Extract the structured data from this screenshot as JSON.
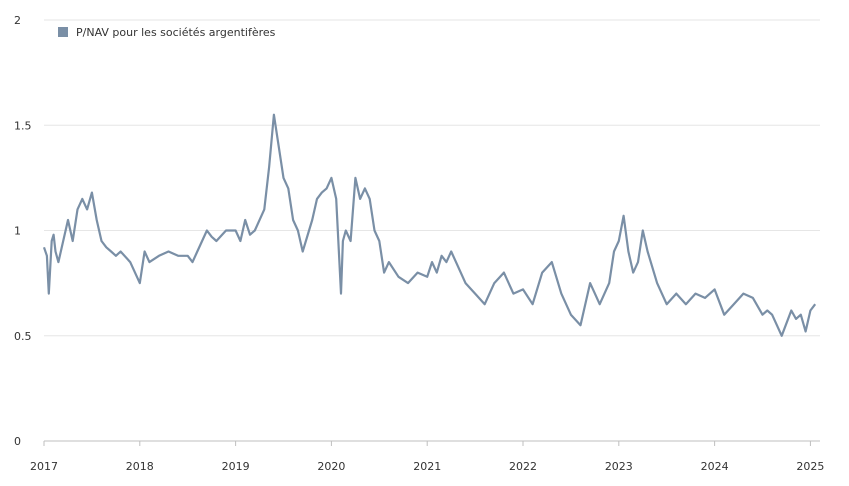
{
  "chart_data": {
    "type": "line",
    "title": "",
    "xlabel": "",
    "ylabel": "",
    "ylim": [
      0,
      2
    ],
    "xlim": [
      2017.0,
      2025.1
    ],
    "y_ticks": [
      "0",
      "0.5",
      "1",
      "1.5",
      "2"
    ],
    "y_tick_values": [
      0,
      0.5,
      1,
      1.5,
      2
    ],
    "x_ticks": [
      "2017",
      "2018",
      "2019",
      "2020",
      "2021",
      "2022",
      "2023",
      "2024",
      "2025"
    ],
    "x_tick_values": [
      2017,
      2018,
      2019,
      2020,
      2021,
      2022,
      2023,
      2024,
      2025
    ],
    "grid": true,
    "legend_position": "top-left",
    "series_color": "#7a8fa6",
    "series": [
      {
        "name": "P/NAV pour les sociétés argentifères",
        "x": [
          2017.0,
          2017.03,
          2017.05,
          2017.08,
          2017.1,
          2017.12,
          2017.15,
          2017.2,
          2017.25,
          2017.3,
          2017.35,
          2017.4,
          2017.45,
          2017.5,
          2017.55,
          2017.6,
          2017.65,
          2017.7,
          2017.75,
          2017.8,
          2017.9,
          2018.0,
          2018.05,
          2018.1,
          2018.2,
          2018.3,
          2018.4,
          2018.5,
          2018.55,
          2018.6,
          2018.7,
          2018.75,
          2018.8,
          2018.9,
          2019.0,
          2019.05,
          2019.1,
          2019.15,
          2019.2,
          2019.3,
          2019.35,
          2019.4,
          2019.45,
          2019.5,
          2019.55,
          2019.6,
          2019.65,
          2019.7,
          2019.8,
          2019.85,
          2019.9,
          2019.95,
          2020.0,
          2020.05,
          2020.1,
          2020.12,
          2020.15,
          2020.2,
          2020.25,
          2020.3,
          2020.35,
          2020.4,
          2020.45,
          2020.5,
          2020.55,
          2020.6,
          2020.7,
          2020.8,
          2020.9,
          2021.0,
          2021.05,
          2021.1,
          2021.15,
          2021.2,
          2021.25,
          2021.3,
          2021.4,
          2021.5,
          2021.6,
          2021.7,
          2021.8,
          2021.9,
          2022.0,
          2022.1,
          2022.2,
          2022.3,
          2022.4,
          2022.5,
          2022.6,
          2022.7,
          2022.75,
          2022.8,
          2022.9,
          2022.95,
          2023.0,
          2023.05,
          2023.1,
          2023.15,
          2023.2,
          2023.25,
          2023.3,
          2023.4,
          2023.5,
          2023.6,
          2023.7,
          2023.8,
          2023.9,
          2024.0,
          2024.1,
          2024.2,
          2024.3,
          2024.4,
          2024.5,
          2024.55,
          2024.6,
          2024.65,
          2024.7,
          2024.8,
          2024.85,
          2024.9,
          2024.95,
          2025.0,
          2025.05
        ],
        "y": [
          0.92,
          0.88,
          0.7,
          0.95,
          0.98,
          0.9,
          0.85,
          0.95,
          1.05,
          0.95,
          1.1,
          1.15,
          1.1,
          1.18,
          1.05,
          0.95,
          0.92,
          0.9,
          0.88,
          0.9,
          0.85,
          0.75,
          0.9,
          0.85,
          0.88,
          0.9,
          0.88,
          0.88,
          0.85,
          0.9,
          1.0,
          0.97,
          0.95,
          1.0,
          1.0,
          0.95,
          1.05,
          0.98,
          1.0,
          1.1,
          1.3,
          1.55,
          1.4,
          1.25,
          1.2,
          1.05,
          1.0,
          0.9,
          1.05,
          1.15,
          1.18,
          1.2,
          1.25,
          1.15,
          0.7,
          0.95,
          1.0,
          0.95,
          1.25,
          1.15,
          1.2,
          1.15,
          1.0,
          0.95,
          0.8,
          0.85,
          0.78,
          0.75,
          0.8,
          0.78,
          0.85,
          0.8,
          0.88,
          0.85,
          0.9,
          0.85,
          0.75,
          0.7,
          0.65,
          0.75,
          0.8,
          0.7,
          0.72,
          0.65,
          0.8,
          0.85,
          0.7,
          0.6,
          0.55,
          0.75,
          0.7,
          0.65,
          0.75,
          0.9,
          0.95,
          1.07,
          0.9,
          0.8,
          0.85,
          1.0,
          0.9,
          0.75,
          0.65,
          0.7,
          0.65,
          0.7,
          0.68,
          0.72,
          0.6,
          0.65,
          0.7,
          0.68,
          0.6,
          0.62,
          0.6,
          0.55,
          0.5,
          0.62,
          0.58,
          0.6,
          0.52,
          0.62,
          0.65
        ]
      }
    ]
  }
}
